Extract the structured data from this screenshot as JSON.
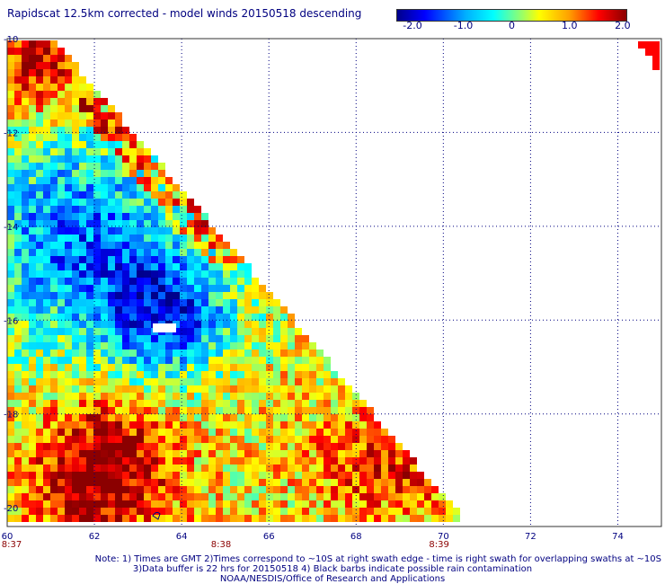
{
  "title": "Rapidscat 12.5km corrected - model winds 20150518 descending",
  "colorbar": {
    "tick_labels": [
      "-2.0",
      "-1.0",
      "0",
      "1.0",
      "2.0"
    ],
    "tick_values": [
      -2.0,
      -1.0,
      0,
      1.0,
      2.0
    ],
    "range": [
      -2.0,
      2.0
    ],
    "colors": [
      "#00008b",
      "#0000ff",
      "#00ffff",
      "#ffff00",
      "#ff0000",
      "#8b0000"
    ]
  },
  "axes": {
    "x_tick_labels": [
      "60",
      "62",
      "64",
      "66",
      "68",
      "70",
      "72",
      "74"
    ],
    "y_tick_labels": [
      "-10",
      "-12",
      "-14",
      "-16",
      "-18",
      "-20"
    ],
    "lon_range": [
      60,
      75
    ],
    "lat_range": [
      -10,
      -20
    ],
    "grid": "dotted"
  },
  "time_labels": [
    "8:37",
    "8:38",
    "8:39"
  ],
  "notes": [
    "Note: 1) Times are GMT 2)Times correspond to ~10S at right swath edge - time is right swath for overlapping swaths at ~10S",
    "3)Data buffer is 22 hrs for 20150518 4) Black barbs indicate possible rain contamination",
    "NOAA/NESDIS/Office of Research and Applications"
  ]
}
